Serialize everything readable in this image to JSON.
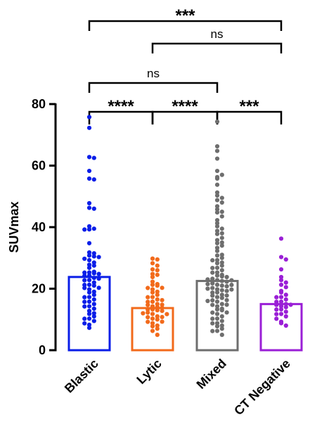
{
  "chart_data": {
    "type": "bar",
    "ylabel": "SUVmax",
    "ylim": [
      0,
      80
    ],
    "yticks": [
      "0",
      "20",
      "40",
      "60",
      "80"
    ],
    "grid": false,
    "categories": [
      "Blastic",
      "Lytic",
      "Mixed",
      "CT Negative"
    ],
    "colors": [
      "#0a1ee8",
      "#f26a1b",
      "#6e6e6e",
      "#9a1fd6"
    ],
    "means": [
      23.8,
      13.7,
      22.5,
      15.0
    ],
    "points": [
      [
        75.5,
        72,
        62.5,
        62.5,
        58,
        55.5,
        55.5,
        47.5,
        46,
        46,
        40,
        39.5,
        39.5,
        39,
        34.5,
        31.5,
        31.5,
        30.5,
        30.5,
        30,
        30,
        29,
        28.5,
        27.5,
        27.5,
        26.5,
        25.5,
        25.5,
        25,
        25,
        24.5,
        24.5,
        24,
        23.5,
        23,
        23,
        22.5,
        22,
        21.5,
        21,
        21,
        20.5,
        20,
        19.5,
        19,
        18.5,
        18,
        17.5,
        17,
        16.5,
        16,
        15.5,
        15,
        14.5,
        14,
        13.5,
        12.5,
        12,
        11.5,
        11,
        10.5,
        10,
        9.5,
        9,
        8,
        7
      ],
      [
        29.5,
        29.5,
        28,
        27.5,
        26,
        26,
        24.5,
        24.5,
        23.5,
        22,
        21.5,
        21,
        21,
        20.5,
        20,
        19.5,
        19,
        18.5,
        18,
        17.5,
        17,
        16.5,
        16,
        16,
        15.5,
        15,
        15,
        14.5,
        14,
        14,
        13.5,
        13.5,
        13,
        13,
        12.5,
        12.5,
        12,
        12,
        11.5,
        11,
        11,
        10.5,
        10,
        10,
        9.5,
        9,
        8.5,
        8,
        7.5,
        7,
        6,
        5
      ],
      [
        74,
        66,
        64.5,
        62,
        58,
        57,
        56,
        55.5,
        53.5,
        51,
        50,
        49.5,
        48.5,
        48,
        46.5,
        45.5,
        45,
        44.5,
        43.5,
        42,
        41,
        40,
        39.5,
        38.5,
        38,
        37.5,
        36.5,
        35.5,
        35,
        34.5,
        34,
        33,
        32,
        31,
        30.5,
        30,
        29.5,
        29,
        28.5,
        28,
        27.5,
        27,
        26.5,
        26,
        25.5,
        25,
        24.5,
        24,
        24,
        23.5,
        23.5,
        23,
        23,
        22.5,
        22.5,
        22,
        22,
        21.5,
        21.5,
        21,
        21,
        20.5,
        20.5,
        20,
        20,
        19.5,
        19.5,
        19,
        19,
        18.5,
        18,
        18,
        17.5,
        17,
        17,
        16.5,
        16,
        16,
        15.5,
        15,
        15,
        14.5,
        14,
        13.5,
        13,
        13,
        12.5,
        12,
        11.5,
        11,
        10.5,
        10,
        9.5,
        9,
        8.5,
        8,
        7.5,
        7,
        6.5,
        6,
        5
      ],
      [
        36,
        30,
        29.5,
        26,
        23.5,
        22.5,
        22,
        21,
        20.5,
        19,
        18.5,
        18,
        17.5,
        17,
        16.5,
        16,
        15.5,
        15,
        15,
        14.5,
        14,
        14,
        13.5,
        13,
        12.5,
        12,
        11.5,
        11,
        10.5,
        9,
        8.5,
        8
      ]
    ],
    "comparisons": [
      {
        "from": 0,
        "to": 3,
        "label": "***"
      },
      {
        "from": 1,
        "to": 3,
        "label": "ns"
      },
      {
        "from": 0,
        "to": 2,
        "label": "ns"
      },
      {
        "from": 0,
        "to": 1,
        "label": "****"
      },
      {
        "from": 1,
        "to": 2,
        "label": "****"
      },
      {
        "from": 2,
        "to": 3,
        "label": "***"
      }
    ]
  }
}
